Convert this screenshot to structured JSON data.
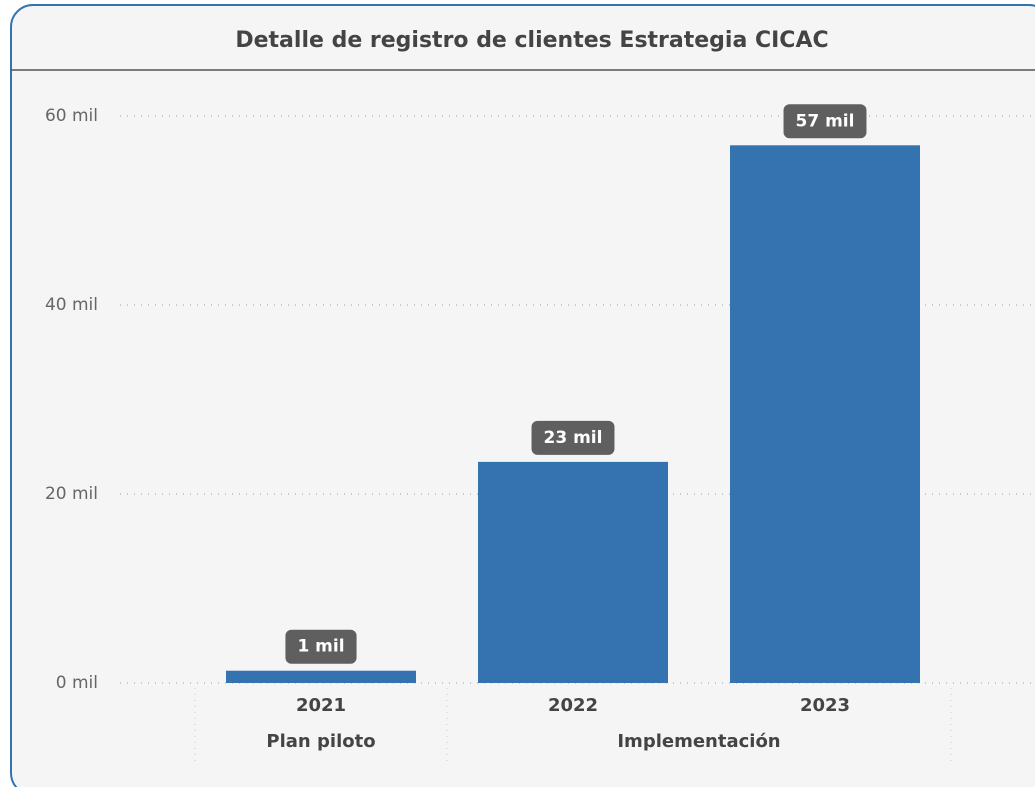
{
  "chart_data": {
    "type": "bar",
    "title": "Detalle de registro de clientes Estrategia CICAC",
    "categories": [
      "2021",
      "2022",
      "2023"
    ],
    "groups": [
      {
        "label": "Plan piloto",
        "size": 1
      },
      {
        "label": "Implementación",
        "size": 2
      }
    ],
    "values": [
      1300,
      23400,
      56900
    ],
    "value_labels": [
      "1 mil",
      "23 mil",
      "57 mil"
    ],
    "color": "#3473b0",
    "ylim": [
      0,
      60000
    ],
    "yticks": [
      {
        "value": 0,
        "label": "0 mil"
      },
      {
        "value": 20000,
        "label": "20 mil"
      },
      {
        "value": 40000,
        "label": "40 mil"
      },
      {
        "value": 60000,
        "label": "60 mil"
      }
    ],
    "grid": true
  }
}
